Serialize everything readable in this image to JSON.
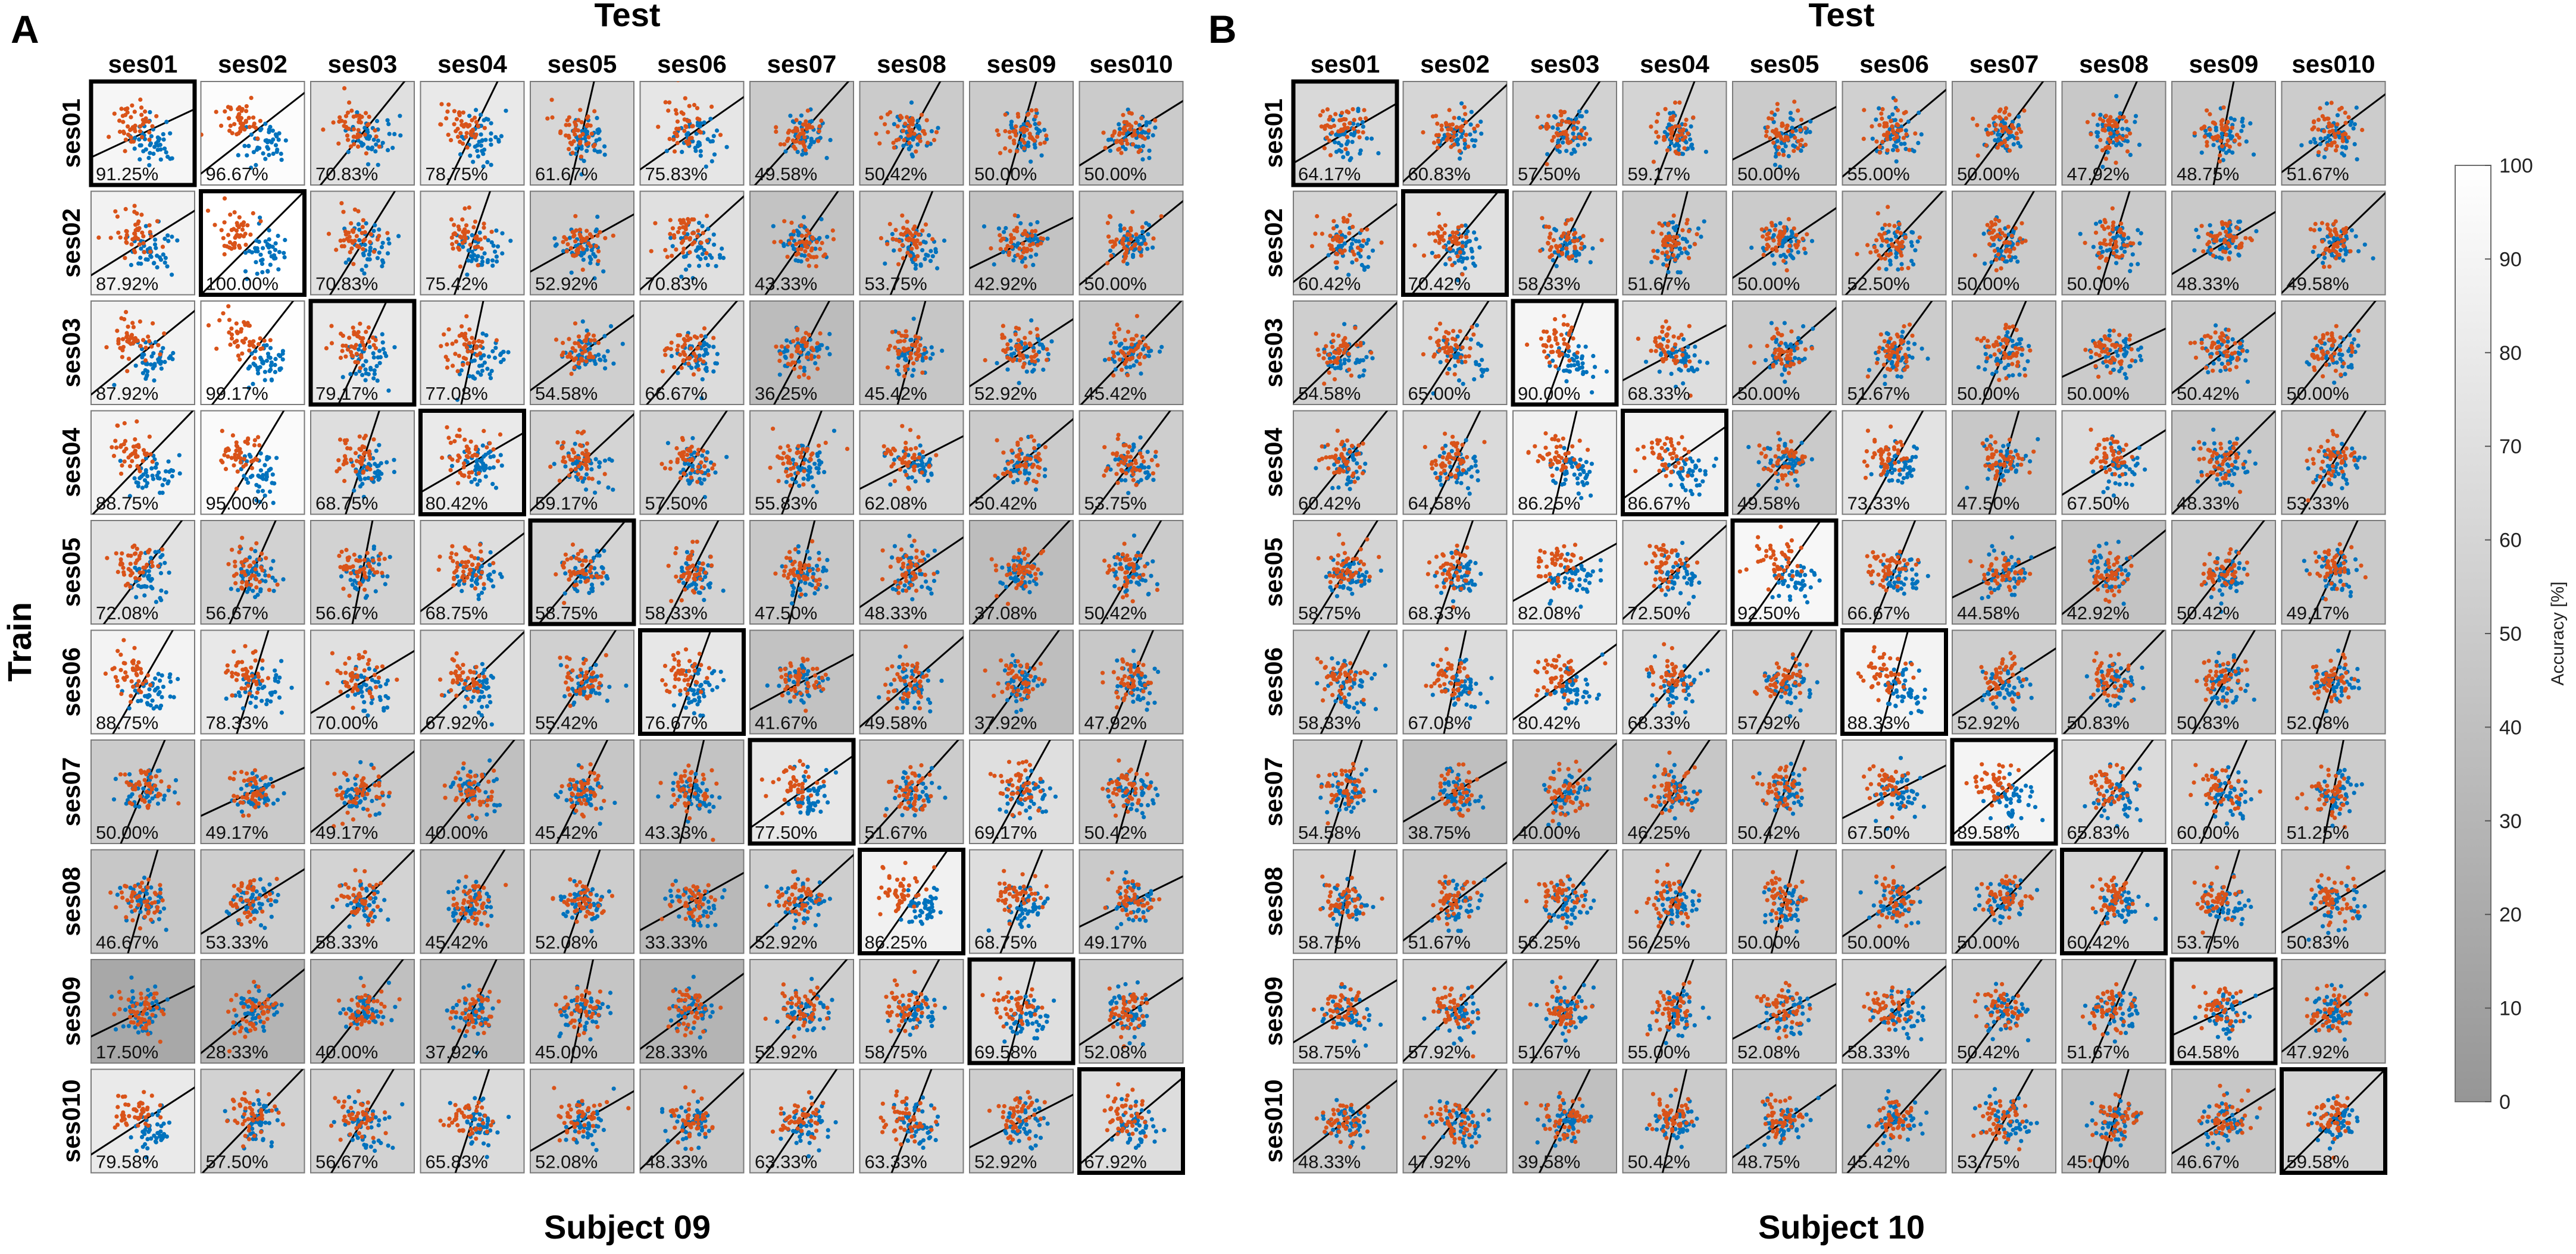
{
  "figure": {
    "panel_labels": [
      "A",
      "B"
    ],
    "test_label": "Test",
    "train_label": "Train",
    "colors": {
      "orange": "#d95319",
      "blue": "#0072bd",
      "border_diag": "#000000"
    }
  },
  "colorbar": {
    "label": "Accuracy [%]",
    "min": 0,
    "max": 100,
    "ticks": [
      "100",
      "90",
      "80",
      "70",
      "60",
      "50",
      "40",
      "30",
      "20",
      "10",
      "0"
    ],
    "gray_dark": "#969696",
    "gray_light": "#ffffff"
  },
  "chart_data": [
    {
      "type": "heatmap",
      "title": "Subject 09",
      "panel": "A",
      "xlabel": "Test",
      "ylabel": "Train",
      "col_labels": [
        "ses01",
        "ses02",
        "ses03",
        "ses04",
        "ses05",
        "ses06",
        "ses07",
        "ses08",
        "ses09",
        "ses010"
      ],
      "row_labels": [
        "ses01",
        "ses02",
        "ses03",
        "ses04",
        "ses05",
        "ses06",
        "ses07",
        "ses08",
        "ses09",
        "ses010"
      ],
      "values": [
        [
          "91.25%",
          "96.67%",
          "70.83%",
          "78.75%",
          "61.67%",
          "75.83%",
          "49.58%",
          "50.42%",
          "50.00%",
          "50.00%"
        ],
        [
          "87.92%",
          "100.00%",
          "70.83%",
          "75.42%",
          "52.92%",
          "70.83%",
          "43.33%",
          "53.75%",
          "42.92%",
          "50.00%"
        ],
        [
          "87.92%",
          "99.17%",
          "79.17%",
          "77.08%",
          "54.58%",
          "66.67%",
          "36.25%",
          "45.42%",
          "52.92%",
          "45.42%"
        ],
        [
          "88.75%",
          "95.00%",
          "68.75%",
          "80.42%",
          "59.17%",
          "57.50%",
          "55.83%",
          "62.08%",
          "50.42%",
          "53.75%"
        ],
        [
          "72.08%",
          "56.67%",
          "56.67%",
          "68.75%",
          "58.75%",
          "58.33%",
          "47.50%",
          "48.33%",
          "37.08%",
          "50.42%"
        ],
        [
          "88.75%",
          "78.33%",
          "70.00%",
          "67.92%",
          "55.42%",
          "76.67%",
          "41.67%",
          "49.58%",
          "37.92%",
          "47.92%"
        ],
        [
          "50.00%",
          "49.17%",
          "49.17%",
          "40.00%",
          "45.42%",
          "43.33%",
          "77.50%",
          "51.67%",
          "69.17%",
          "50.42%"
        ],
        [
          "46.67%",
          "53.33%",
          "58.33%",
          "45.42%",
          "52.08%",
          "33.33%",
          "52.92%",
          "86.25%",
          "68.75%",
          "49.17%"
        ],
        [
          "17.50%",
          "28.33%",
          "40.00%",
          "37.92%",
          "45.00%",
          "28.33%",
          "52.92%",
          "58.75%",
          "69.58%",
          "52.08%"
        ],
        [
          "79.58%",
          "57.50%",
          "56.67%",
          "65.83%",
          "52.08%",
          "48.33%",
          "63.33%",
          "63.33%",
          "52.92%",
          "67.92%"
        ]
      ]
    },
    {
      "type": "heatmap",
      "title": "Subject 10",
      "panel": "B",
      "xlabel": "Test",
      "ylabel": "",
      "col_labels": [
        "ses01",
        "ses02",
        "ses03",
        "ses04",
        "ses05",
        "ses06",
        "ses07",
        "ses08",
        "ses09",
        "ses010"
      ],
      "row_labels": [
        "ses01",
        "ses02",
        "ses03",
        "ses04",
        "ses05",
        "ses06",
        "ses07",
        "ses08",
        "ses09",
        "ses010"
      ],
      "values": [
        [
          "64.17%",
          "60.83%",
          "57.50%",
          "59.17%",
          "50.00%",
          "55.00%",
          "50.00%",
          "47.92%",
          "48.75%",
          "51.67%"
        ],
        [
          "60.42%",
          "70.42%",
          "58.33%",
          "51.67%",
          "50.00%",
          "52.50%",
          "50.00%",
          "50.00%",
          "48.33%",
          "49.58%"
        ],
        [
          "54.58%",
          "65.00%",
          "90.00%",
          "68.33%",
          "50.00%",
          "51.67%",
          "50.00%",
          "50.00%",
          "50.42%",
          "50.00%"
        ],
        [
          "60.42%",
          "64.58%",
          "86.25%",
          "86.67%",
          "49.58%",
          "73.33%",
          "47.50%",
          "67.50%",
          "48.33%",
          "53.33%"
        ],
        [
          "58.75%",
          "68.33%",
          "82.08%",
          "72.50%",
          "92.50%",
          "66.67%",
          "44.58%",
          "42.92%",
          "50.42%",
          "49.17%"
        ],
        [
          "58.33%",
          "67.08%",
          "80.42%",
          "68.33%",
          "57.92%",
          "88.33%",
          "52.92%",
          "50.83%",
          "50.83%",
          "52.08%"
        ],
        [
          "54.58%",
          "38.75%",
          "40.00%",
          "46.25%",
          "50.42%",
          "67.50%",
          "89.58%",
          "65.83%",
          "60.00%",
          "51.25%"
        ],
        [
          "58.75%",
          "51.67%",
          "56.25%",
          "56.25%",
          "50.00%",
          "50.00%",
          "50.00%",
          "60.42%",
          "53.75%",
          "50.83%"
        ],
        [
          "58.75%",
          "57.92%",
          "51.67%",
          "55.00%",
          "52.08%",
          "58.33%",
          "50.42%",
          "51.67%",
          "64.58%",
          "47.92%"
        ],
        [
          "48.33%",
          "47.92%",
          "39.58%",
          "50.42%",
          "48.75%",
          "45.42%",
          "53.75%",
          "45.00%",
          "46.67%",
          "59.58%"
        ]
      ]
    }
  ]
}
